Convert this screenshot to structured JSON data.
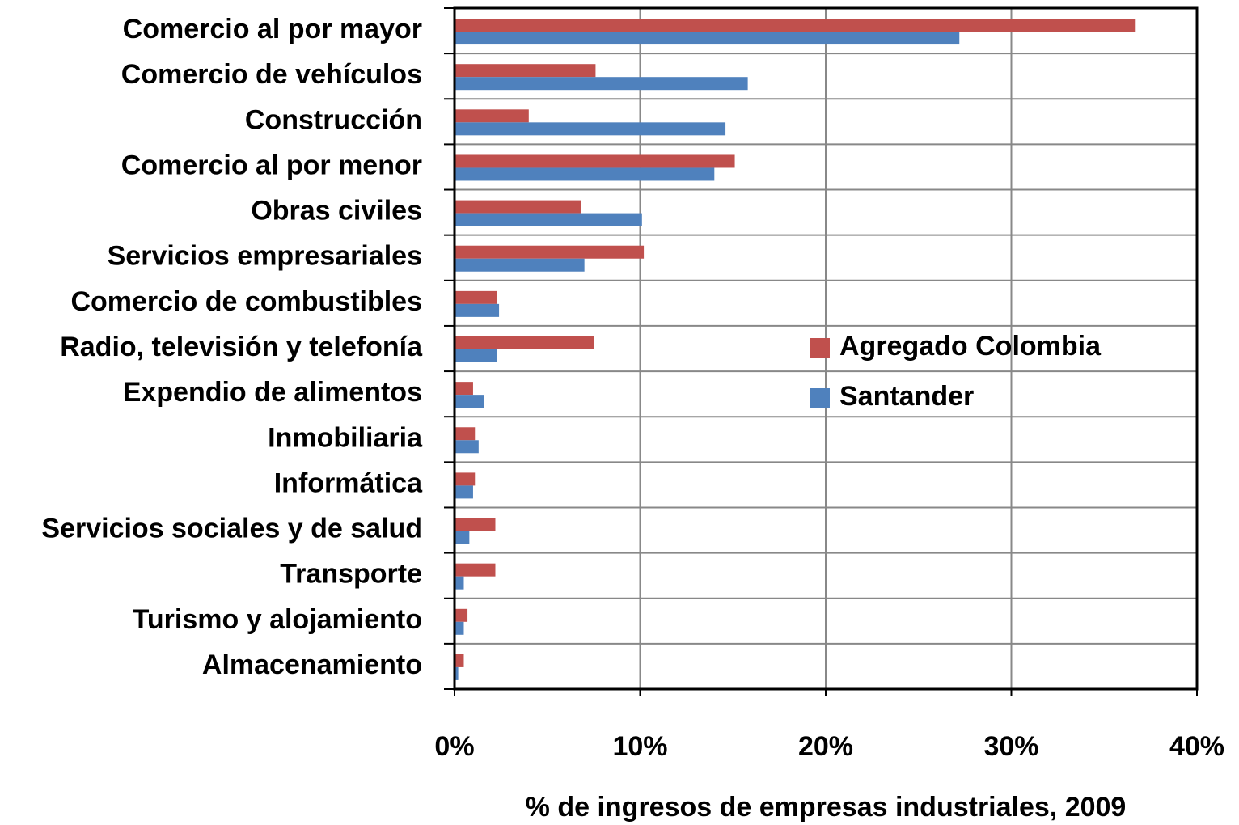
{
  "chart_data": {
    "type": "bar",
    "orientation": "horizontal",
    "x_axis_label": "% de ingresos de empresas industriales, 2009",
    "categories": [
      "Comercio al por mayor",
      "Comercio de vehículos",
      "Construcción",
      "Comercio al por menor",
      "Obras civiles",
      "Servicios empresariales",
      "Comercio de combustibles",
      "Radio, televisión y telefonía",
      "Expendio de alimentos",
      "Inmobiliaria",
      "Informática",
      "Servicios sociales y de salud",
      "Transporte",
      "Turismo y alojamiento",
      "Almacenamiento"
    ],
    "series": [
      {
        "name": "Agregado Colombia",
        "color": "#c0504d",
        "values": [
          36.7,
          7.6,
          4.0,
          15.1,
          6.8,
          10.2,
          2.3,
          7.5,
          1.0,
          1.1,
          1.1,
          2.2,
          2.2,
          0.7,
          0.5
        ]
      },
      {
        "name": "Santander",
        "color": "#4f81bd",
        "values": [
          27.2,
          15.8,
          14.6,
          14.0,
          10.1,
          7.0,
          2.4,
          2.3,
          1.6,
          1.3,
          1.0,
          0.8,
          0.5,
          0.5,
          0.2
        ]
      }
    ],
    "xlim": [
      0,
      40
    ],
    "xticks": [
      {
        "value": 0,
        "label": "0%"
      },
      {
        "value": 10,
        "label": "10%"
      },
      {
        "value": 20,
        "label": "20%"
      },
      {
        "value": 30,
        "label": "30%"
      },
      {
        "value": 40,
        "label": "40%"
      }
    ],
    "grid": true,
    "legend": "right"
  }
}
